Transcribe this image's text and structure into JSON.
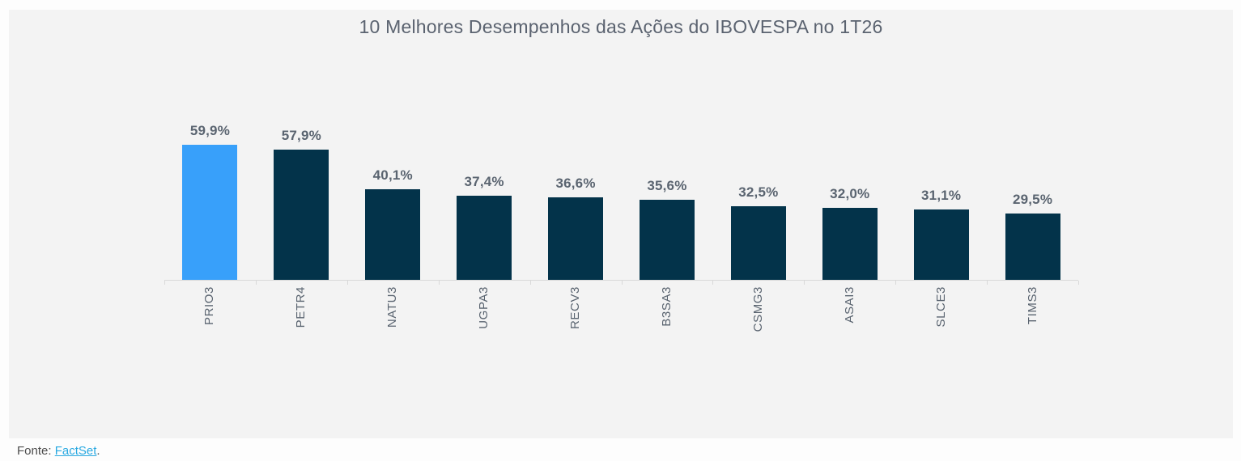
{
  "page": {
    "background": "#FDFDFD",
    "panel_background": "#F3F3F3"
  },
  "chart_data": {
    "type": "bar",
    "title": "10 Melhores Desempenhos das Ações do IBOVESPA no 1T26",
    "categories": [
      "PRIO3",
      "PETR4",
      "NATU3",
      "UGPA3",
      "RECV3",
      "B3SA3",
      "CSMG3",
      "ASAI3",
      "SLCE3",
      "TIMS3"
    ],
    "values": [
      59.9,
      57.9,
      40.1,
      37.4,
      36.6,
      35.6,
      32.5,
      32.0,
      31.1,
      29.5
    ],
    "value_labels": [
      "59,9%",
      "57,9%",
      "40,1%",
      "37,4%",
      "36,6%",
      "35,6%",
      "32,5%",
      "32,0%",
      "31,1%",
      "29,5%"
    ],
    "highlight_index": 0,
    "xlabel": "",
    "ylabel": "",
    "ylim": [
      0,
      65
    ],
    "grid": false,
    "legend": "none",
    "x_tick_rotation": 90,
    "colors": {
      "bar_highlight": "#38A0FA",
      "bar_default": "#03334A",
      "axis_line": "#D9D9D9",
      "data_label": "#5A6470",
      "title": "#5B6370"
    }
  },
  "footer": {
    "prefix": "Fonte: ",
    "link_label": "FactSet",
    "suffix": ".",
    "link_color": "#29A9E1"
  }
}
